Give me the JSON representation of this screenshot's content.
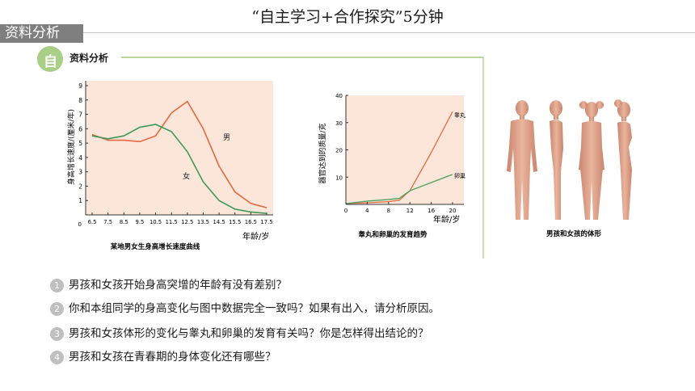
{
  "header": {
    "title": "“自主学习+合作探究”5分钟",
    "tab_label": "资料分析"
  },
  "panel": {
    "icon_char": "自",
    "label": "资料分析"
  },
  "chart1": {
    "caption": "某地男女生身高增长速度曲线",
    "ylabel": "身高增长速度/(厘米/年)",
    "xunit": "年龄/岁",
    "boy_label": "男",
    "girl_label": "女",
    "x_ticks": [
      "6.5",
      "7.5",
      "8.5",
      "9.5",
      "10.5",
      "11.5",
      "12.5",
      "13.5",
      "14.5",
      "15.5",
      "16.5",
      "17.5"
    ],
    "y_ticks": [
      "1",
      "2",
      "3",
      "4",
      "5",
      "6",
      "7",
      "8",
      "9"
    ],
    "zero": "0"
  },
  "chart2": {
    "caption": "睾丸和卵巢的发育趋势",
    "ylabel": "器官达到的质量/克",
    "xunit": "年龄/岁",
    "testis_label": "睾丸",
    "ovary_label": "卵巢",
    "x_ticks": [
      "0",
      "4",
      "8",
      "12",
      "16",
      "20"
    ],
    "y_ticks": [
      "10",
      "20",
      "30",
      "40"
    ]
  },
  "figure3": {
    "caption": "男孩和女孩的体形"
  },
  "chart_data": [
    {
      "type": "line",
      "title": "某地男女生身高增长速度曲线",
      "xlabel": "年龄/岁",
      "ylabel": "身高增长速度/(厘米/年)",
      "x": [
        6.5,
        7.5,
        8.5,
        9.5,
        10.5,
        11.5,
        12.5,
        13.5,
        14.5,
        15.5,
        16.5,
        17.5
      ],
      "ylim": [
        0,
        9
      ],
      "series": [
        {
          "name": "男",
          "color": "#e4683f",
          "values": [
            5.6,
            5.2,
            5.2,
            5.1,
            5.5,
            7.1,
            7.9,
            6.0,
            3.4,
            1.6,
            0.8,
            0.5
          ]
        },
        {
          "name": "女",
          "color": "#3c9a58",
          "values": [
            5.5,
            5.3,
            5.5,
            6.1,
            6.3,
            5.8,
            4.4,
            2.3,
            1.0,
            0.4,
            0.2,
            0.1
          ]
        }
      ]
    },
    {
      "type": "line",
      "title": "睾丸和卵巢的发育趋势",
      "xlabel": "年龄/岁",
      "ylabel": "器官达到的质量/克",
      "x": [
        0,
        4,
        8,
        10,
        12,
        16,
        20
      ],
      "ylim": [
        0,
        40
      ],
      "series": [
        {
          "name": "睾丸",
          "color": "#e4683f",
          "values": [
            0.3,
            0.6,
            1.0,
            1.5,
            5,
            19,
            34
          ]
        },
        {
          "name": "卵巢",
          "color": "#4aa35f",
          "values": [
            0.3,
            1.2,
            1.8,
            2.2,
            5,
            8,
            11
          ]
        }
      ]
    }
  ],
  "questions": [
    {
      "num": "1",
      "text": "男孩和女孩开始身高突增的年龄有没有差别？"
    },
    {
      "num": "2",
      "text": "你和本组同学的身高变化与图中数据完全一致吗？如果有出入，请分析原因。"
    },
    {
      "num": "3",
      "text": "男孩和女孩体形的变化与睾丸和卵巢的发育有关吗？你是怎样得出结论的？"
    },
    {
      "num": "4",
      "text": "男孩和女孩在青春期的身体变化还有哪些？"
    }
  ]
}
